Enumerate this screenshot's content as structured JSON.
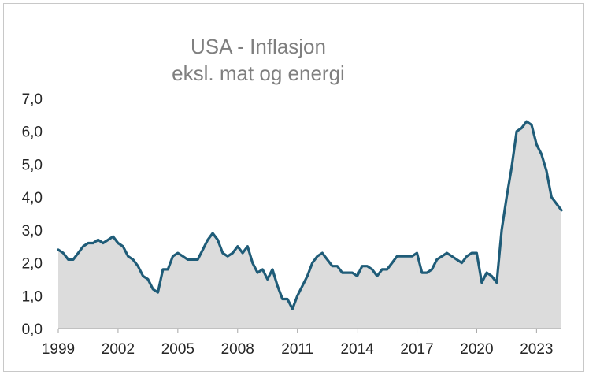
{
  "chart_data": {
    "type": "area",
    "title": "USA - Inflasjon",
    "subtitle": "eksl. mat og energi",
    "xlabel": "",
    "ylabel": "",
    "xlim": [
      1999,
      2024.25
    ],
    "ylim": [
      0,
      7
    ],
    "yticks": [
      "0,0",
      "1,0",
      "2,0",
      "3,0",
      "4,0",
      "5,0",
      "6,0",
      "7,0"
    ],
    "xticks": [
      "1999",
      "2002",
      "2005",
      "2008",
      "2011",
      "2014",
      "2017",
      "2020",
      "2023"
    ],
    "grid": false,
    "colors": {
      "line": "#1f5c78",
      "fill": "#dcdcdc",
      "axis": "#a6a6a6",
      "title": "#7f7f7f"
    },
    "series": [
      {
        "x": [
          1999.0,
          1999.25,
          1999.5,
          1999.75,
          2000.0,
          2000.25,
          2000.5,
          2000.75,
          2001.0,
          2001.25,
          2001.5,
          2001.75,
          2002.0,
          2002.25,
          2002.5,
          2002.75,
          2003.0,
          2003.25,
          2003.5,
          2003.75,
          2004.0,
          2004.25,
          2004.5,
          2004.75,
          2005.0,
          2005.25,
          2005.5,
          2005.75,
          2006.0,
          2006.25,
          2006.5,
          2006.75,
          2007.0,
          2007.25,
          2007.5,
          2007.75,
          2008.0,
          2008.25,
          2008.5,
          2008.75,
          2009.0,
          2009.25,
          2009.5,
          2009.75,
          2010.0,
          2010.25,
          2010.5,
          2010.75,
          2011.0,
          2011.25,
          2011.5,
          2011.75,
          2012.0,
          2012.25,
          2012.5,
          2012.75,
          2013.0,
          2013.25,
          2013.5,
          2013.75,
          2014.0,
          2014.25,
          2014.5,
          2014.75,
          2015.0,
          2015.25,
          2015.5,
          2015.75,
          2016.0,
          2016.25,
          2016.5,
          2016.75,
          2017.0,
          2017.25,
          2017.5,
          2017.75,
          2018.0,
          2018.25,
          2018.5,
          2018.75,
          2019.0,
          2019.25,
          2019.5,
          2019.75,
          2020.0,
          2020.25,
          2020.5,
          2020.75,
          2021.0,
          2021.25,
          2021.5,
          2021.75,
          2022.0,
          2022.25,
          2022.5,
          2022.75,
          2023.0,
          2023.25,
          2023.5,
          2023.75,
          2024.0,
          2024.25
        ],
        "values": [
          2.4,
          2.3,
          2.1,
          2.1,
          2.3,
          2.5,
          2.6,
          2.6,
          2.7,
          2.6,
          2.7,
          2.8,
          2.6,
          2.5,
          2.2,
          2.1,
          1.9,
          1.6,
          1.5,
          1.2,
          1.1,
          1.8,
          1.8,
          2.2,
          2.3,
          2.2,
          2.1,
          2.1,
          2.1,
          2.4,
          2.7,
          2.9,
          2.7,
          2.3,
          2.2,
          2.3,
          2.5,
          2.3,
          2.5,
          2.0,
          1.7,
          1.8,
          1.5,
          1.8,
          1.3,
          0.9,
          0.9,
          0.6,
          1.0,
          1.3,
          1.6,
          2.0,
          2.2,
          2.3,
          2.1,
          1.9,
          1.9,
          1.7,
          1.7,
          1.7,
          1.6,
          1.9,
          1.9,
          1.8,
          1.6,
          1.8,
          1.8,
          2.0,
          2.2,
          2.2,
          2.2,
          2.2,
          2.3,
          1.7,
          1.7,
          1.8,
          2.1,
          2.2,
          2.3,
          2.2,
          2.1,
          2.0,
          2.2,
          2.3,
          2.3,
          1.4,
          1.7,
          1.6,
          1.4,
          3.0,
          4.0,
          4.9,
          6.0,
          6.1,
          6.3,
          6.2,
          5.6,
          5.3,
          4.8,
          4.0,
          3.8,
          3.6
        ]
      }
    ]
  }
}
